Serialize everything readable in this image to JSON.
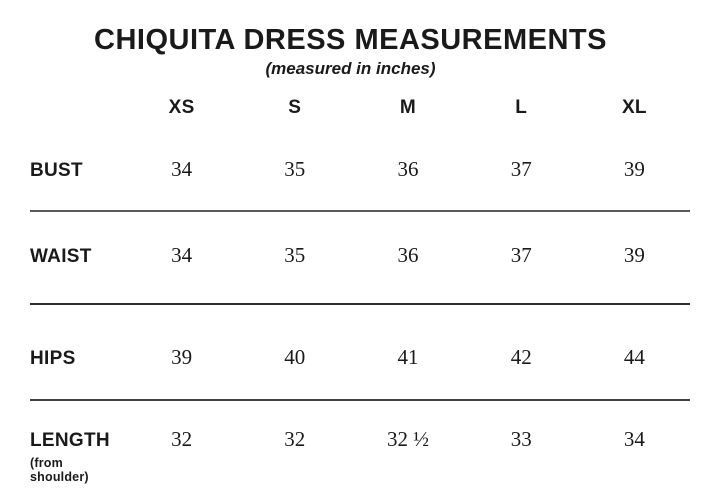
{
  "chart_data": {
    "type": "table",
    "title": "CHIQUITA DRESS MEASUREMENTS",
    "subtitle": "(measured in inches)",
    "columns": [
      "XS",
      "S",
      "M",
      "L",
      "XL"
    ],
    "rows": [
      {
        "label": "BUST",
        "sublabel": "",
        "values": [
          "34",
          "35",
          "36",
          "37",
          "39"
        ]
      },
      {
        "label": "WAIST",
        "sublabel": "",
        "values": [
          "34",
          "35",
          "36",
          "37",
          "39"
        ]
      },
      {
        "label": "HIPS",
        "sublabel": "",
        "values": [
          "39",
          "40",
          "41",
          "42",
          "44"
        ]
      },
      {
        "label": "LENGTH",
        "sublabel": "(from shoulder)",
        "values": [
          "32",
          "32",
          "32 ½",
          "33",
          "34"
        ]
      }
    ],
    "layout_hints": {
      "grid": "off",
      "row_dividers": 3,
      "units": "inches"
    }
  },
  "colors": {
    "text": "#1a1a1a",
    "rule": "#4a4a4a",
    "background": "#ffffff"
  }
}
